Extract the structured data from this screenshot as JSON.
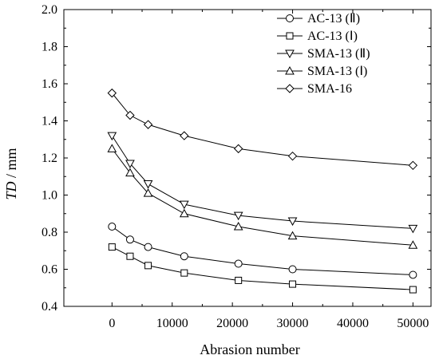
{
  "chart_data": {
    "type": "line",
    "title": "",
    "xlabel": "Abrasion number",
    "ylabel_italic": "TD",
    "ylabel_rest": " / mm",
    "xlim": [
      -8000,
      53000
    ],
    "ylim": [
      0.4,
      2.0
    ],
    "x_ticks": [
      0,
      10000,
      20000,
      30000,
      40000,
      50000
    ],
    "y_ticks": [
      0.4,
      0.6,
      0.8,
      1.0,
      1.2,
      1.4,
      1.6,
      1.8,
      2.0
    ],
    "y_tick_labels": [
      "0.4",
      "0.6",
      "0.8",
      "1.0",
      "1.2",
      "1.4",
      "1.6",
      "1.8",
      "2.0"
    ],
    "grid": false,
    "legend_position": "top-right",
    "x": [
      0,
      3000,
      6000,
      12000,
      21000,
      30000,
      50000
    ],
    "series": [
      {
        "name": "AC-13 (Ⅱ)",
        "marker": "circle",
        "values": [
          0.83,
          0.76,
          0.72,
          0.67,
          0.63,
          0.6,
          0.57
        ]
      },
      {
        "name": "AC-13 (Ⅰ)",
        "marker": "square",
        "values": [
          0.72,
          0.67,
          0.62,
          0.58,
          0.54,
          0.52,
          0.49
        ]
      },
      {
        "name": "SMA-13 (Ⅱ)",
        "marker": "triangle-down",
        "values": [
          1.32,
          1.17,
          1.06,
          0.95,
          0.89,
          0.86,
          0.82
        ]
      },
      {
        "name": "SMA-13 (Ⅰ)",
        "marker": "triangle-up",
        "values": [
          1.25,
          1.12,
          1.01,
          0.9,
          0.83,
          0.78,
          0.73
        ]
      },
      {
        "name": "SMA-16",
        "marker": "diamond",
        "values": [
          1.55,
          1.43,
          1.38,
          1.32,
          1.25,
          1.21,
          1.16
        ]
      }
    ]
  }
}
